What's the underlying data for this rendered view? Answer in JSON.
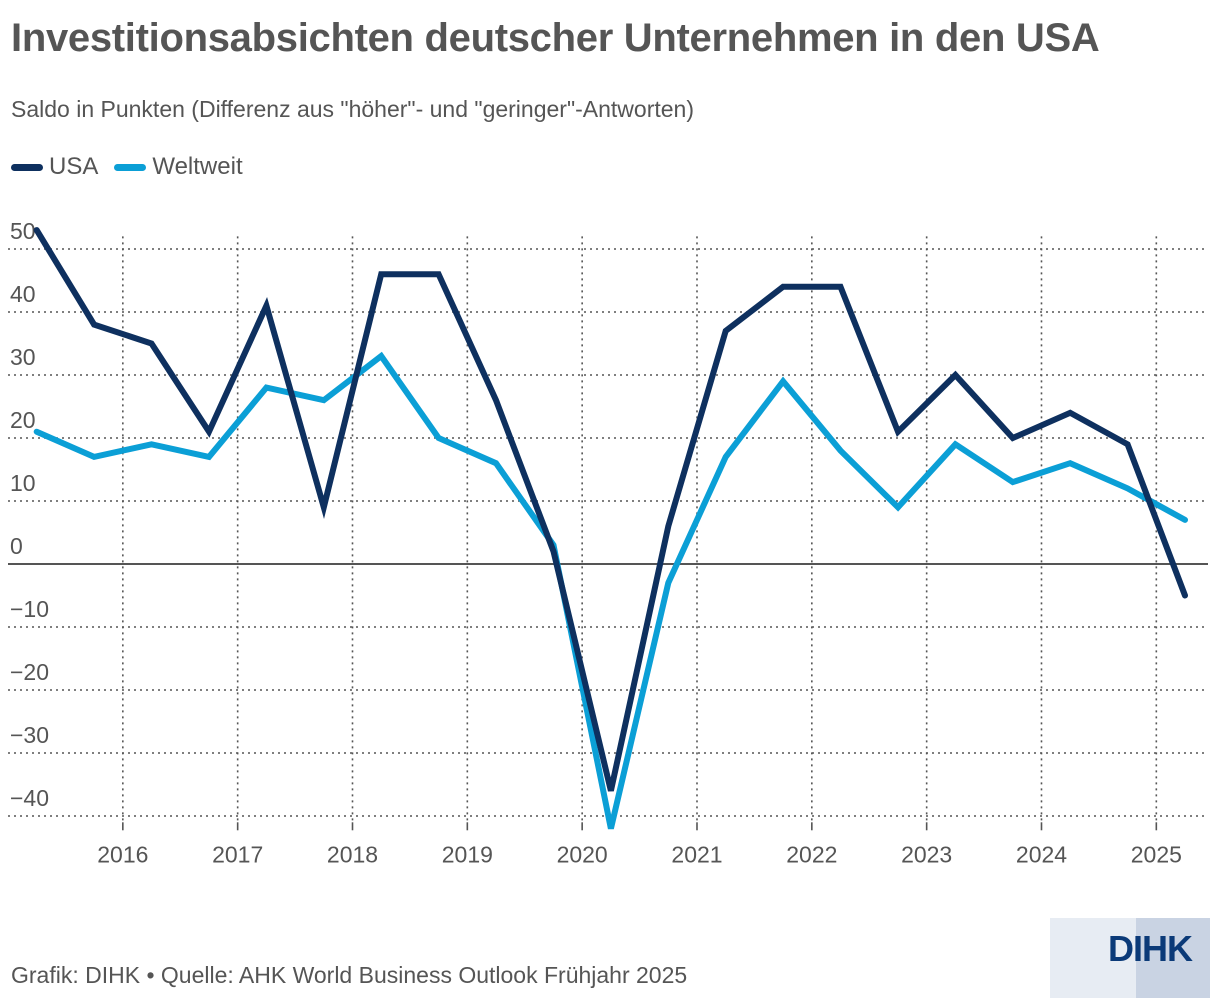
{
  "header": {
    "title": "Investitionsabsichten deutscher Unternehmen in den USA",
    "subtitle": "Saldo in Punkten (Differenz aus \"höher\"- und \"geringer\"-Antworten)"
  },
  "footer": {
    "source": "Grafik: DIHK • Quelle: AHK World Business Outlook Frühjahr 2025",
    "logo_text": "DIHK"
  },
  "chart_data": {
    "type": "line",
    "title": "Investitionsabsichten deutscher Unternehmen in den USA",
    "subtitle": "Saldo in Punkten (Differenz aus \"höher\"- und \"geringer\"-Antworten)",
    "xlabel": "",
    "ylabel": "",
    "x_unit": "year",
    "xlim": [
      2015.0,
      2025.45
    ],
    "ylim": [
      -41,
      52
    ],
    "x_ticks": [
      2016,
      2017,
      2018,
      2019,
      2020,
      2021,
      2022,
      2023,
      2024,
      2025
    ],
    "x_tick_labels": [
      "2016",
      "2017",
      "2018",
      "2019",
      "2020",
      "2021",
      "2022",
      "2023",
      "2024",
      "2025"
    ],
    "y_ticks": [
      50,
      40,
      30,
      20,
      10,
      0,
      -10,
      -20,
      -30,
      -40
    ],
    "y_tick_labels": [
      "50",
      "40",
      "30",
      "20",
      "10",
      "0",
      "−10",
      "−20",
      "−30",
      "−40"
    ],
    "grid": true,
    "legend_position": "top-left",
    "x": [
      2015.25,
      2015.75,
      2016.25,
      2016.75,
      2017.25,
      2017.75,
      2018.25,
      2018.75,
      2019.25,
      2019.75,
      2020.25,
      2020.75,
      2021.25,
      2021.75,
      2022.25,
      2022.75,
      2023.25,
      2023.75,
      2024.25,
      2024.75,
      2025.25
    ],
    "series": [
      {
        "name": "USA",
        "color": "#0e305f",
        "values": [
          53,
          38,
          35,
          21,
          41,
          9,
          46,
          46,
          26,
          2,
          -36,
          6,
          37,
          44,
          44,
          21,
          30,
          20,
          24,
          19,
          -5
        ]
      },
      {
        "name": "Weltweit",
        "color": "#0b9fd6",
        "values": [
          21,
          17,
          19,
          17,
          28,
          26,
          33,
          20,
          16,
          3,
          -42,
          -3,
          17,
          29,
          18,
          9,
          19,
          13,
          16,
          12,
          7
        ]
      }
    ]
  }
}
